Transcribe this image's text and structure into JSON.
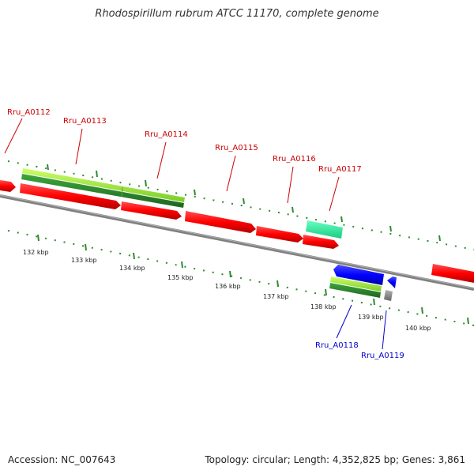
{
  "title": "Rhodospirillum rubrum ATCC 11170, complete genome",
  "footer": {
    "accession": "Accession: NC_007643",
    "stats": "Topology: circular; Length: 4,352,825 bp; Genes: 3,861"
  },
  "scale_labels": [
    "132 kbp",
    "133 kbp",
    "134 kbp",
    "135 kbp",
    "136 kbp",
    "137 kbp",
    "138 kbp",
    "139 kbp",
    "140 kbp"
  ],
  "gene_labels": {
    "forward": [
      "Rru_A0112",
      "Rru_A0113",
      "Rru_A0114",
      "Rru_A0115",
      "Rru_A0116",
      "Rru_A0117"
    ],
    "reverse": [
      "Rru_A0118",
      "Rru_A0119"
    ]
  },
  "colors": {
    "forward_cds": "#ff0000",
    "reverse_cds": "#0000ff",
    "forward_label": "#cc0000",
    "reverse_label": "#0000cc",
    "gene_light": "#99e633",
    "gene_dark": "#2e8b2e",
    "rna": "#33ffaa",
    "backbone": "#888888",
    "ticks": "#2e8b2e"
  }
}
